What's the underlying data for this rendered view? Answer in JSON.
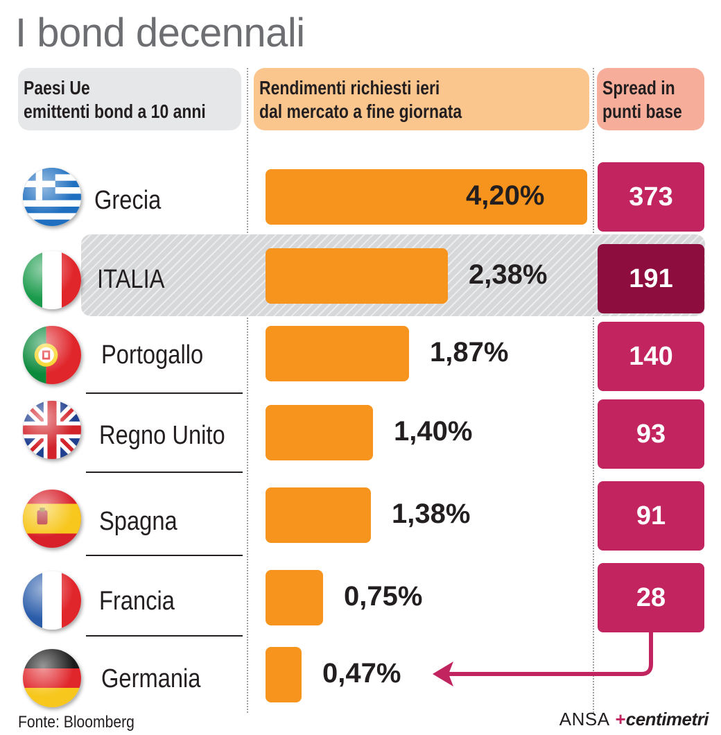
{
  "title": "I bond decennali",
  "headers": {
    "country_line1": "Paesi Ue",
    "country_line2": "emittenti bond a 10 anni",
    "yield_line1": "Rendimenti richiesti ieri",
    "yield_line2": "dal mercato a fine giornata",
    "spread_line1": "Spread in",
    "spread_line2": "punti base"
  },
  "rows": [
    {
      "country": "Grecia",
      "yield_label": "4,20%",
      "spread_label": "373",
      "flag_icon": "greece-flag-icon"
    },
    {
      "country": "ITALIA",
      "yield_label": "2,38%",
      "spread_label": "191",
      "flag_icon": "italy-flag-icon"
    },
    {
      "country": "Portogallo",
      "yield_label": "1,87%",
      "spread_label": "140",
      "flag_icon": "portugal-flag-icon"
    },
    {
      "country": "Regno Unito",
      "yield_label": "1,40%",
      "spread_label": "93",
      "flag_icon": "uk-flag-icon"
    },
    {
      "country": "Spagna",
      "yield_label": "1,38%",
      "spread_label": "91",
      "flag_icon": "spain-flag-icon"
    },
    {
      "country": "Francia",
      "yield_label": "0,75%",
      "spread_label": "28",
      "flag_icon": "france-flag-icon"
    },
    {
      "country": "Germania",
      "yield_label": "0,47%",
      "spread_label": "",
      "flag_icon": "germany-flag-icon"
    }
  ],
  "source": "Fonte: Bloomberg",
  "credit": {
    "agency": "ANSA",
    "mark": "+",
    "brand": "centimetri"
  },
  "colors": {
    "bar": "#f7941d",
    "spread": "#c1245f",
    "spread_highlight": "#8e0d3f",
    "highlight_band": "#d7d8da"
  },
  "chart_data": {
    "type": "bar",
    "title": "I bond decennali",
    "categories": [
      "Grecia",
      "ITALIA",
      "Portogallo",
      "Regno Unito",
      "Spagna",
      "Francia",
      "Germania"
    ],
    "series": [
      {
        "name": "Rendimenti richiesti ieri dal mercato a fine giornata",
        "values": [
          4.2,
          2.38,
          1.87,
          1.4,
          1.38,
          0.75,
          0.47
        ]
      },
      {
        "name": "Spread in punti base",
        "values": [
          373,
          191,
          140,
          93,
          91,
          28,
          null
        ]
      }
    ],
    "highlighted_category": "ITALIA",
    "orientation": "horizontal"
  }
}
